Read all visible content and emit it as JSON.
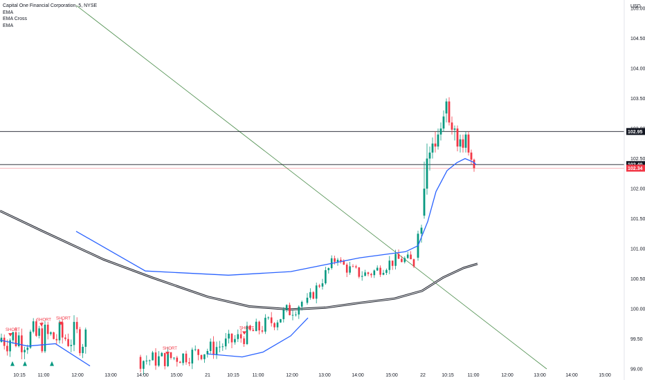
{
  "chart_data": {
    "type": "candlestick",
    "title": "Capital One Financial Corporation, 5, NYSE",
    "currency": "USD",
    "indicators": [
      "EMA",
      "EMA Cross",
      "EMA"
    ],
    "y_ticks": [
      "105.00",
      "104.50",
      "104.00",
      "103.50",
      "103.00",
      "102.50",
      "102.00",
      "101.50",
      "101.00",
      "100.50",
      "100.00",
      "99.50",
      "99.00"
    ],
    "x_ticks": [
      "10:15",
      "11:00",
      "12:00",
      "13:00",
      "14:00",
      "15:00",
      "21",
      "10:15",
      "11:00",
      "12:00",
      "13:00",
      "14:00",
      "15:00",
      "22",
      "10:15",
      "11:00",
      "12:00",
      "13:00",
      "14:00",
      "15:00"
    ],
    "ylim": [
      99.0,
      105.05
    ],
    "horizontal_lines": [
      {
        "price": 102.95,
        "label": "102.95",
        "color": "#131722"
      },
      {
        "price": 102.4,
        "label": "102.40",
        "color": "#131722"
      },
      {
        "price": 102.34,
        "label": "102.34",
        "color": "#f23645"
      }
    ],
    "signals": [
      {
        "label": "SHORT",
        "x": "10:15",
        "price": 99.55
      },
      {
        "label": "SHORT",
        "x": "10:50",
        "price": 99.72
      },
      {
        "label": "SHORT",
        "x": "11:20",
        "price": 99.74
      },
      {
        "label": "SHORT",
        "x": "14:30",
        "price": 99.24
      },
      {
        "label": "SHORT",
        "x": "10:45",
        "price": 99.58
      }
    ],
    "ema_fast": [
      [
        110,
        101.29
      ],
      [
        210,
        100.63
      ],
      [
        330,
        100.56
      ],
      [
        420,
        100.62
      ],
      [
        520,
        100.85
      ],
      [
        586,
        100.95
      ],
      [
        604,
        101.05
      ],
      [
        618,
        101.45
      ],
      [
        630,
        101.95
      ],
      [
        646,
        102.3
      ],
      [
        660,
        102.43
      ],
      [
        672,
        102.5
      ],
      [
        684,
        102.44
      ],
      [
        688,
        102.4
      ]
    ],
    "ema_slow": [
      [
        0,
        101.63
      ],
      [
        60,
        101.3
      ],
      [
        150,
        100.82
      ],
      [
        220,
        100.52
      ],
      [
        300,
        100.2
      ],
      [
        360,
        100.04
      ],
      [
        420,
        99.99
      ],
      [
        470,
        100.02
      ],
      [
        520,
        100.1
      ],
      [
        570,
        100.17
      ],
      [
        610,
        100.3
      ],
      [
        640,
        100.52
      ],
      [
        670,
        100.68
      ],
      [
        690,
        100.75
      ]
    ],
    "trendline": {
      "from": {
        "x": 110,
        "price": 105.05
      },
      "to": {
        "x": 790,
        "price": 99.0
      }
    },
    "candles_day1": [
      [
        95.0,
        99.6,
        99.4,
        99.45
      ],
      [
        99.62,
        99.68,
        99.38,
        99.5
      ],
      [
        99.5,
        99.78,
        99.25,
        99.3
      ],
      [
        99.35,
        99.55,
        99.2,
        99.4
      ],
      [
        99.4,
        99.6,
        99.25,
        99.28
      ],
      [
        99.28,
        99.35,
        99.1,
        99.18
      ],
      [
        99.2,
        99.45,
        99.15,
        99.42
      ],
      [
        99.4,
        99.7,
        99.3,
        99.65
      ],
      [
        99.66,
        99.7,
        99.4,
        99.45
      ],
      [
        99.45,
        99.72,
        99.4,
        99.68
      ],
      [
        99.66,
        99.72,
        99.45,
        99.5
      ],
      [
        99.52,
        99.68,
        99.48,
        99.62
      ],
      [
        99.62,
        99.72,
        99.3,
        99.35
      ],
      [
        99.35,
        99.45,
        99.12,
        99.4
      ],
      [
        99.42,
        99.6,
        99.25,
        99.28
      ],
      [
        99.3,
        99.62,
        99.25,
        99.58
      ],
      [
        99.55,
        99.62,
        99.25,
        99.32
      ],
      [
        99.3,
        99.6,
        99.28,
        99.55
      ],
      [
        99.58,
        99.65,
        99.3,
        99.4
      ],
      [
        99.4,
        99.48,
        99.2,
        99.25
      ],
      [
        99.25,
        99.32,
        99.08,
        99.12
      ],
      [
        99.12,
        99.3,
        99.05,
        99.2
      ],
      [
        99.22,
        99.35,
        99.1,
        99.15
      ],
      [
        99.15,
        99.3,
        99.05,
        99.1
      ]
    ]
  }
}
